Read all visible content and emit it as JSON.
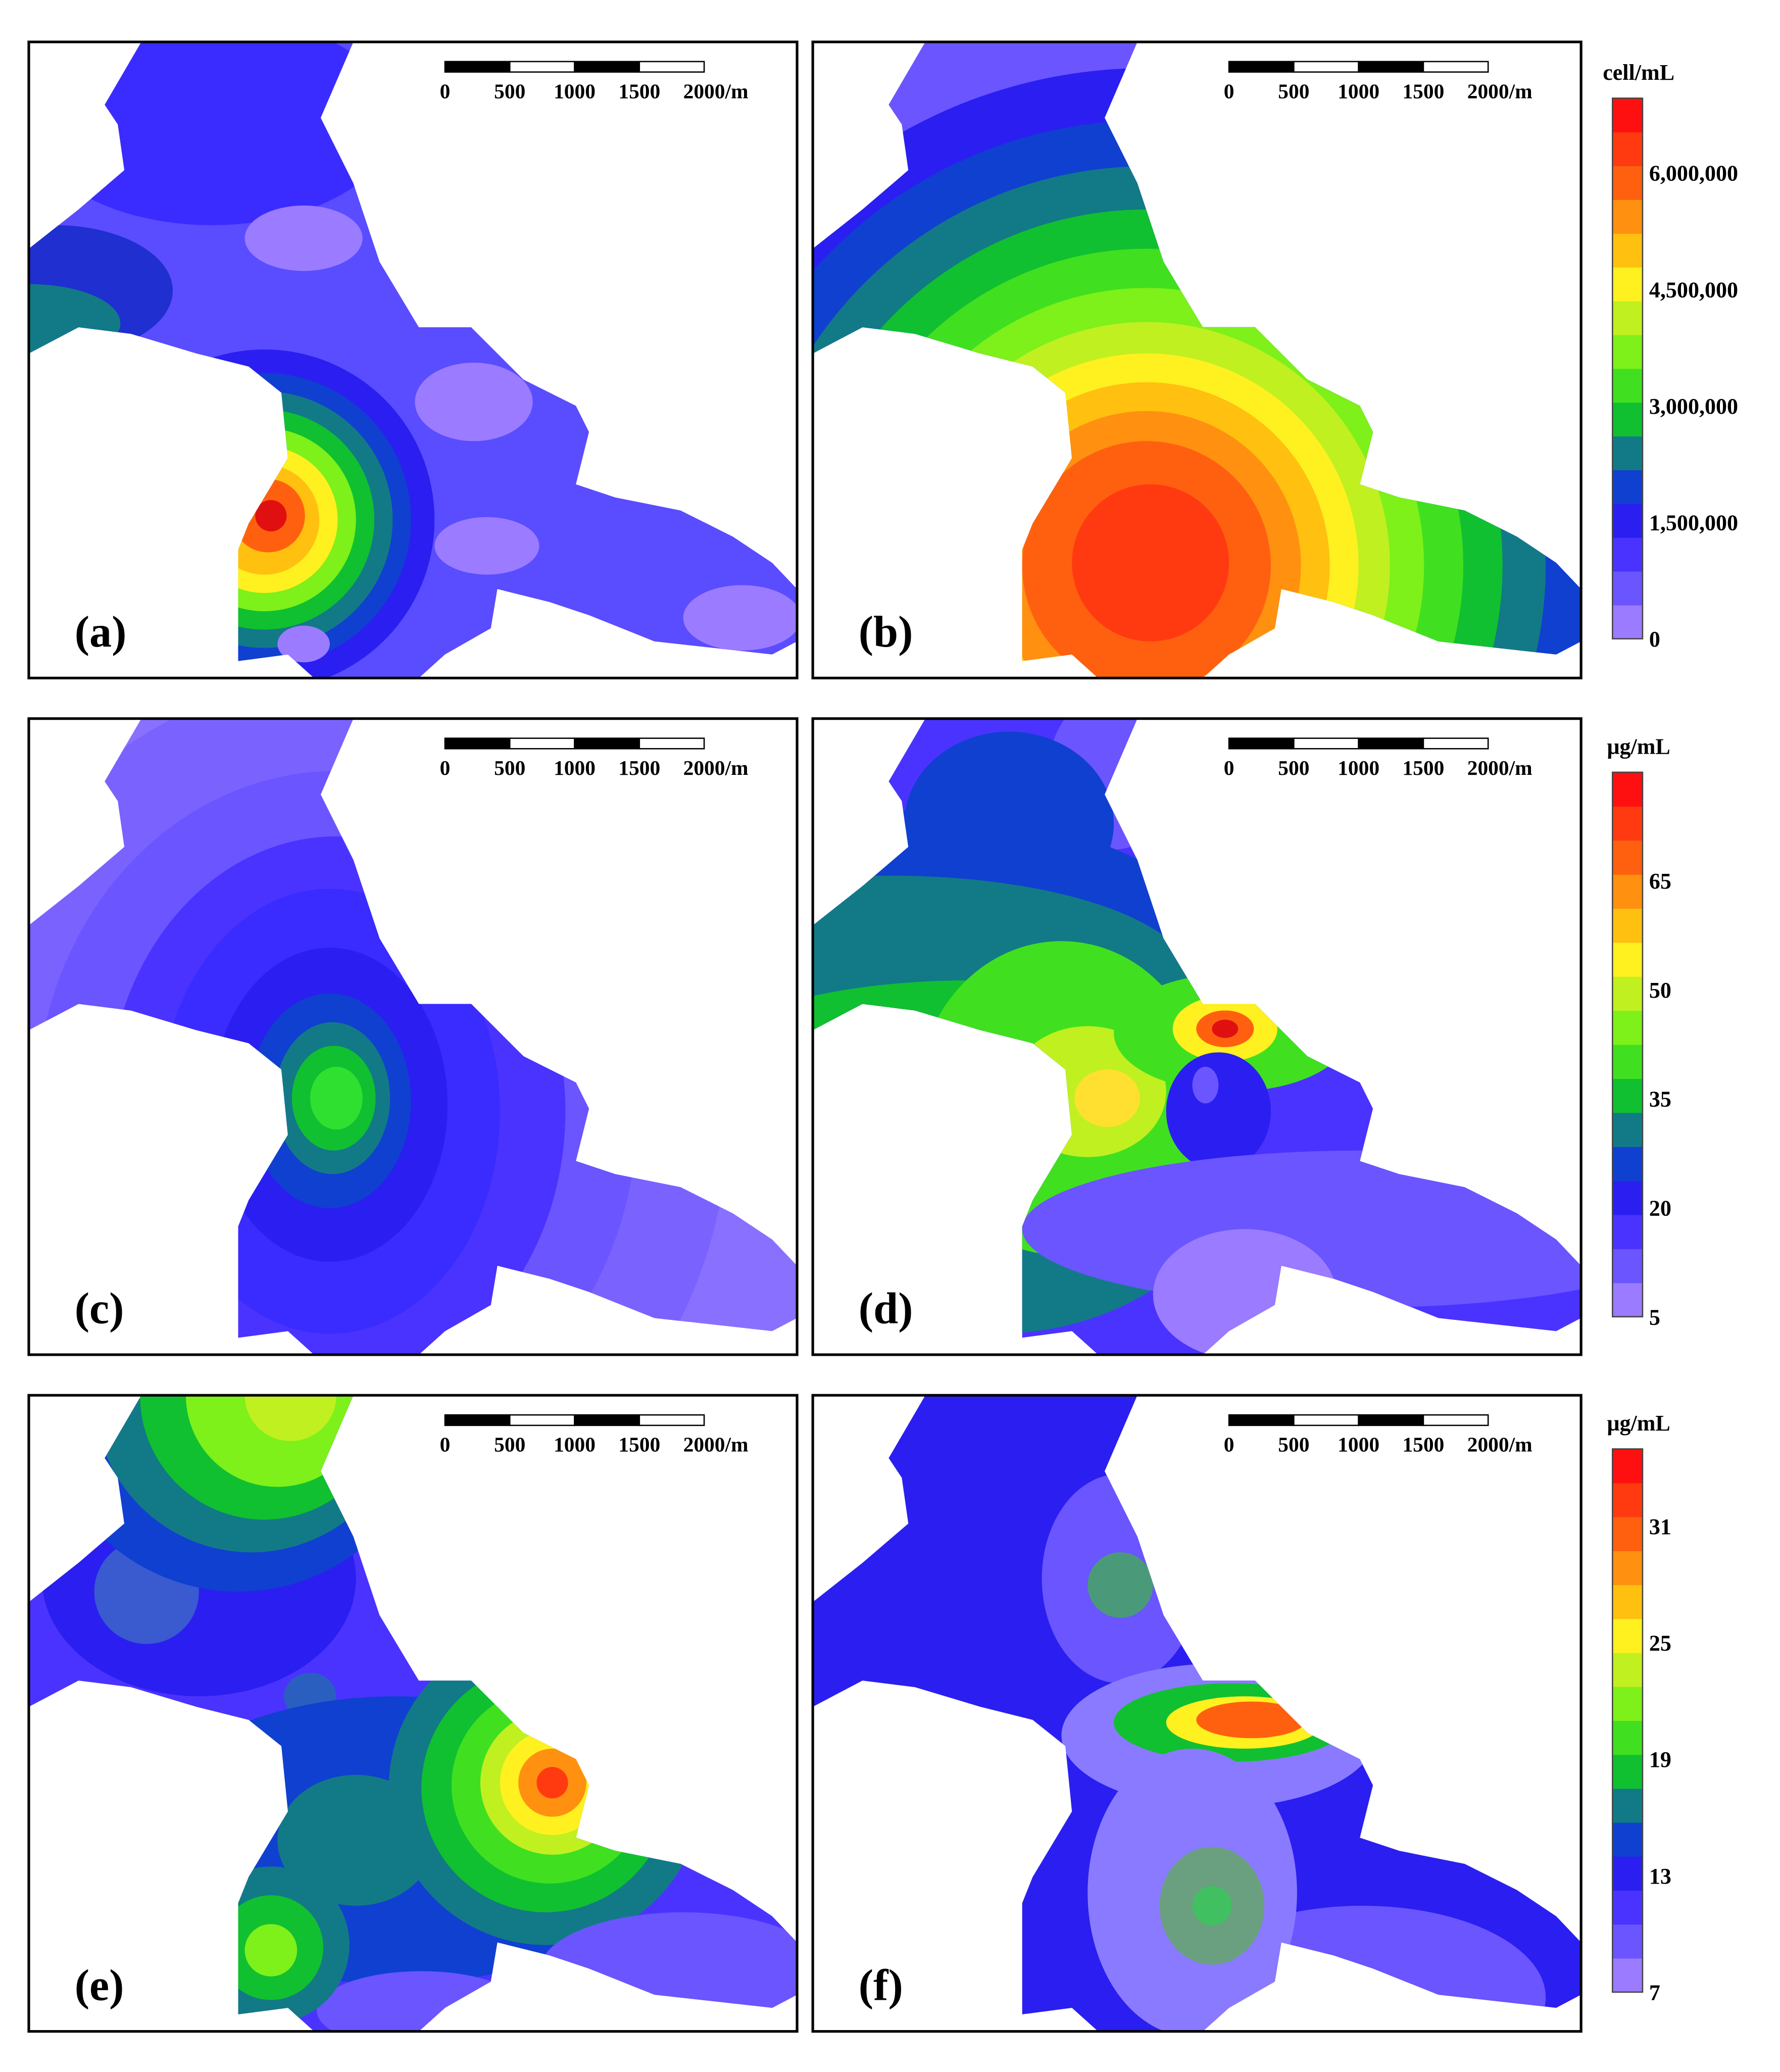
{
  "panels": [
    {
      "label": "(a)"
    },
    {
      "label": "(b)"
    },
    {
      "label": "(c)"
    },
    {
      "label": "(d)"
    },
    {
      "label": "(e)"
    },
    {
      "label": "(f)"
    }
  ],
  "scale_bar": {
    "ticks": [
      "0",
      "500",
      "1000",
      "1500",
      "2000"
    ],
    "unit": "/m"
  },
  "colorbars": [
    {
      "unit": "cell/mL",
      "ticks": [
        "0",
        "1,500,000",
        "3,000,000",
        "4,500,000",
        "6,000,000"
      ],
      "colors": [
        "#9b7bff",
        "#6a55ff",
        "#4a33ff",
        "#2a1ff0",
        "#1040d0",
        "#127a86",
        "#10c030",
        "#40e020",
        "#7ef01a",
        "#c0f020",
        "#fff020",
        "#ffc010",
        "#ff9010",
        "#ff6010",
        "#ff3a10",
        "#ff1010"
      ]
    },
    {
      "unit": "μg/mL",
      "ticks": [
        "5",
        "20",
        "35",
        "50",
        "65"
      ],
      "colors": [
        "#9b7bff",
        "#6a55ff",
        "#4a33ff",
        "#2a1ff0",
        "#1040d0",
        "#127a86",
        "#10c030",
        "#40e020",
        "#7ef01a",
        "#c0f020",
        "#fff020",
        "#ffc010",
        "#ff9010",
        "#ff6010",
        "#ff3a10",
        "#ff1010"
      ]
    },
    {
      "unit": "μg/mL",
      "ticks": [
        "7",
        "13",
        "19",
        "25",
        "31"
      ],
      "colors": [
        "#9b7bff",
        "#6a55ff",
        "#4a33ff",
        "#2a1ff0",
        "#1040d0",
        "#127a86",
        "#10c030",
        "#40e020",
        "#7ef01a",
        "#c0f020",
        "#fff020",
        "#ffc010",
        "#ff9010",
        "#ff6010",
        "#ff3a10",
        "#ff1010"
      ]
    }
  ]
}
